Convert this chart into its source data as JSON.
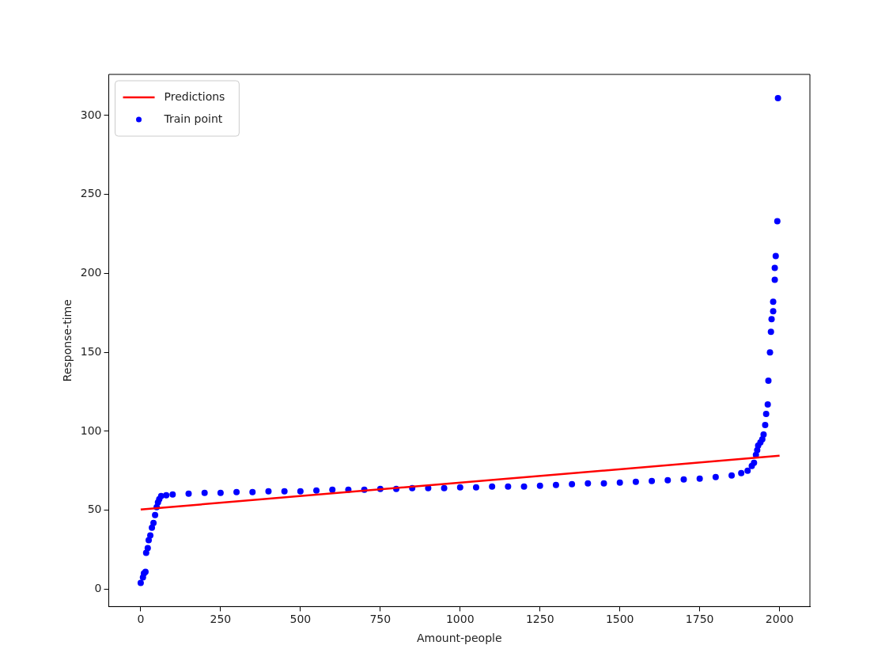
{
  "chart_data": {
    "type": "scatter",
    "xlabel": "Amount-people",
    "ylabel": "Response-time",
    "xlim": [
      -100,
      2095
    ],
    "ylim": [
      -11,
      326
    ],
    "xticks": [
      0,
      250,
      500,
      750,
      1000,
      1250,
      1500,
      1750,
      2000
    ],
    "yticks": [
      0,
      50,
      100,
      150,
      200,
      250,
      300
    ],
    "grid": false,
    "legend": "top left",
    "marker": "circle",
    "series": [
      {
        "name": "Predictions",
        "type": "line",
        "color": "#ff0000",
        "marker": "none",
        "x": [
          0,
          2000
        ],
        "values": [
          50.5,
          84.5
        ]
      },
      {
        "name": "Train point",
        "type": "scatter",
        "color": "#0000ff",
        "x": [
          0,
          7,
          10,
          15,
          17,
          22,
          25,
          30,
          35,
          40,
          45,
          50,
          54,
          58,
          64,
          80,
          100,
          150,
          200,
          250,
          300,
          350,
          400,
          450,
          500,
          550,
          600,
          650,
          700,
          750,
          800,
          850,
          900,
          950,
          1000,
          1050,
          1100,
          1150,
          1200,
          1250,
          1300,
          1350,
          1400,
          1450,
          1500,
          1550,
          1600,
          1650,
          1700,
          1750,
          1800,
          1850,
          1880,
          1900,
          1913,
          1920,
          1926,
          1930,
          1933,
          1940,
          1946,
          1950,
          1955,
          1958,
          1963,
          1965,
          1970,
          1973,
          1975,
          1980,
          1980,
          1985,
          1985,
          1988,
          1993,
          1995
        ],
        "values": [
          4,
          7.5,
          10,
          11,
          23,
          26,
          31,
          34,
          39,
          42,
          47,
          52,
          55,
          57,
          59,
          59.5,
          60,
          60.5,
          61,
          61,
          61.5,
          61.5,
          62,
          62,
          62,
          62.5,
          63,
          63,
          63,
          63.5,
          63.5,
          64,
          64,
          64,
          64.5,
          64.5,
          65,
          65,
          65,
          65.5,
          66,
          66.5,
          67,
          67,
          67.5,
          68,
          68.5,
          69,
          69.5,
          70,
          71,
          72,
          73.5,
          75,
          78,
          80,
          85,
          88,
          91,
          93,
          95,
          98,
          104,
          111,
          117,
          132,
          150,
          163,
          171,
          176,
          182,
          196,
          203.5,
          211,
          233,
          311
        ]
      }
    ]
  }
}
